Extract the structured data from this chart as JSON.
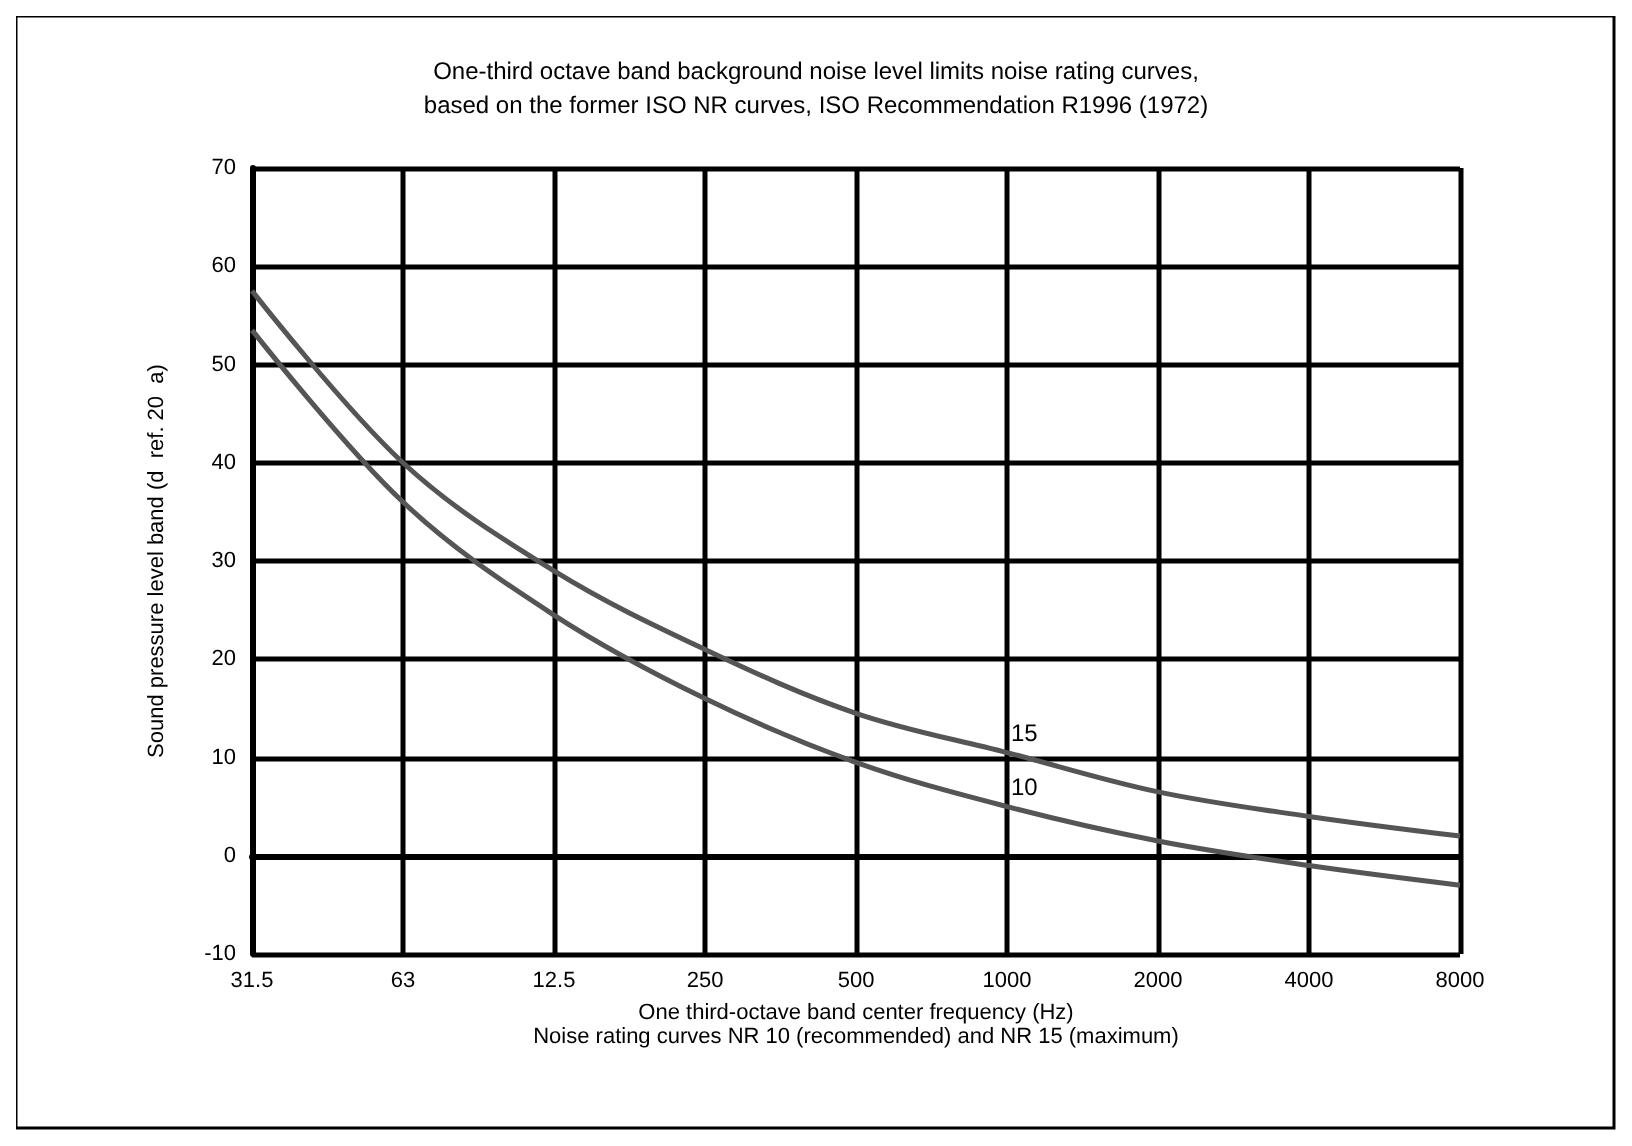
{
  "chart_data": {
    "type": "line",
    "title": "One-third octave band background noise level limits noise rating curves,\nbased on the former ISO NR curves, ISO Recommendation R1996 (1972)",
    "xlabel": "One third-octave band center frequency (Hz)",
    "ylabel": "Sound pressure level band (d  ref. 20  a)",
    "categories": [
      "31.5",
      "63",
      "12.5",
      "250",
      "500",
      "1000",
      "2000",
      "4000",
      "8000"
    ],
    "series": [
      {
        "color": "#555555",
        "values": [
          57.5,
          40,
          29,
          21,
          14.5,
          10.5,
          6.5,
          4,
          2
        ]
      },
      {
        "color": "#555555",
        "values": [
          53.5,
          36,
          24.5,
          16,
          9.5,
          5,
          1.5,
          -1,
          -3
        ]
      }
    ],
    "ylim": [
      -10,
      70
    ],
    "yticks": [
      -10,
      0,
      10,
      20,
      30,
      40,
      50,
      60,
      70
    ],
    "annotations": [
      {
        "text": "15",
        "x": "1000",
        "y": 10.5
      },
      {
        "text": "10",
        "x": "1000",
        "y": 5
      },
      "Noise rating curves NR 10 (recommended) and NR 15 (maximum)"
    ],
    "grid": true,
    "marker": "none",
    "line_style": "solid"
  }
}
